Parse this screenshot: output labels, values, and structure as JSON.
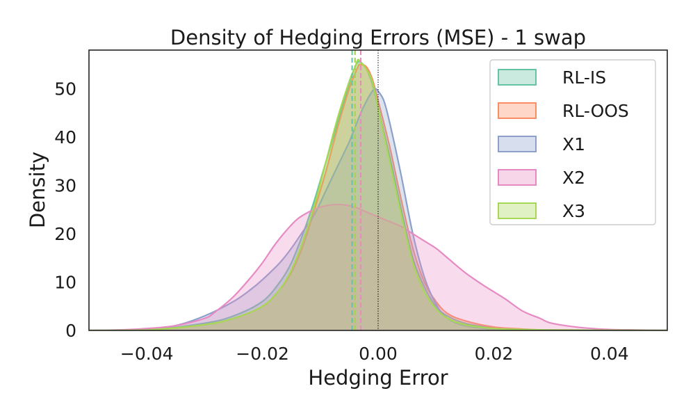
{
  "chart_data": {
    "type": "area",
    "title": "Density of Hedging Errors (MSE) - 1 swap",
    "xlabel": "Hedging Error",
    "ylabel": "Density",
    "xlim": [
      -0.05,
      0.05
    ],
    "ylim": [
      0,
      58
    ],
    "xticks": [
      -0.04,
      -0.02,
      0.0,
      0.02,
      0.04
    ],
    "xtick_labels": [
      "−0.04",
      "−0.02",
      "0.00",
      "0.02",
      "0.04"
    ],
    "yticks": [
      0,
      10,
      20,
      30,
      40,
      50
    ],
    "ytick_labels": [
      "0",
      "10",
      "20",
      "30",
      "40",
      "50"
    ],
    "grid": false,
    "legend_position": "top-right",
    "zero_line": 0.0,
    "series": [
      {
        "name": "RL-IS",
        "color": "#66c2a5",
        "mean": -0.0045,
        "points": [
          [
            -0.05,
            0
          ],
          [
            -0.04,
            0.1
          ],
          [
            -0.03,
            1.5
          ],
          [
            -0.025,
            3
          ],
          [
            -0.02,
            6
          ],
          [
            -0.017,
            10
          ],
          [
            -0.015,
            14
          ],
          [
            -0.013,
            20
          ],
          [
            -0.011,
            27
          ],
          [
            -0.009,
            35
          ],
          [
            -0.007,
            43
          ],
          [
            -0.005,
            51
          ],
          [
            -0.004,
            54.5
          ],
          [
            -0.0035,
            55.5
          ],
          [
            -0.003,
            55.5
          ],
          [
            -0.002,
            54
          ],
          [
            -0.001,
            51
          ],
          [
            0.0,
            46
          ],
          [
            0.002,
            36
          ],
          [
            0.004,
            25
          ],
          [
            0.006,
            15
          ],
          [
            0.008,
            9
          ],
          [
            0.01,
            5
          ],
          [
            0.012,
            3
          ],
          [
            0.015,
            1.5
          ],
          [
            0.02,
            0.5
          ],
          [
            0.025,
            0.2
          ],
          [
            0.03,
            0.1
          ],
          [
            0.05,
            0
          ]
        ]
      },
      {
        "name": "RL-OOS",
        "color": "#fc8d62",
        "mean": -0.003,
        "points": [
          [
            -0.05,
            0
          ],
          [
            -0.04,
            0.1
          ],
          [
            -0.03,
            1.2
          ],
          [
            -0.025,
            2.5
          ],
          [
            -0.02,
            5
          ],
          [
            -0.017,
            8.5
          ],
          [
            -0.015,
            12
          ],
          [
            -0.013,
            17.5
          ],
          [
            -0.011,
            25
          ],
          [
            -0.009,
            33
          ],
          [
            -0.007,
            42
          ],
          [
            -0.005,
            50
          ],
          [
            -0.0035,
            54.5
          ],
          [
            -0.003,
            55
          ],
          [
            -0.002,
            54.5
          ],
          [
            -0.001,
            52
          ],
          [
            0.0,
            47.5
          ],
          [
            0.002,
            38
          ],
          [
            0.004,
            27
          ],
          [
            0.006,
            17
          ],
          [
            0.008,
            10
          ],
          [
            0.01,
            6
          ],
          [
            0.012,
            3.5
          ],
          [
            0.015,
            2
          ],
          [
            0.02,
            0.7
          ],
          [
            0.025,
            0.3
          ],
          [
            0.03,
            0.1
          ],
          [
            0.05,
            0
          ]
        ]
      },
      {
        "name": "X1",
        "color": "#8da0cb",
        "mean": -0.004,
        "points": [
          [
            -0.05,
            0
          ],
          [
            -0.045,
            0.1
          ],
          [
            -0.04,
            0.3
          ],
          [
            -0.035,
            1
          ],
          [
            -0.03,
            3
          ],
          [
            -0.025,
            6
          ],
          [
            -0.022,
            8.5
          ],
          [
            -0.02,
            10.5
          ],
          [
            -0.017,
            14
          ],
          [
            -0.015,
            17
          ],
          [
            -0.013,
            20.5
          ],
          [
            -0.011,
            24
          ],
          [
            -0.009,
            29
          ],
          [
            -0.007,
            34
          ],
          [
            -0.005,
            39
          ],
          [
            -0.004,
            42
          ],
          [
            -0.003,
            45
          ],
          [
            -0.002,
            47.5
          ],
          [
            -0.001,
            49.5
          ],
          [
            -0.0005,
            50
          ],
          [
            0.0,
            49.5
          ],
          [
            0.001,
            47.5
          ],
          [
            0.002,
            43
          ],
          [
            0.004,
            32
          ],
          [
            0.006,
            20
          ],
          [
            0.008,
            11
          ],
          [
            0.01,
            5.5
          ],
          [
            0.012,
            2.5
          ],
          [
            0.015,
            1
          ],
          [
            0.02,
            0.3
          ],
          [
            0.03,
            0.1
          ],
          [
            0.05,
            0
          ]
        ]
      },
      {
        "name": "X2",
        "color": "#e78ac3",
        "mean": -0.003,
        "points": [
          [
            -0.05,
            0
          ],
          [
            -0.045,
            0.1
          ],
          [
            -0.04,
            0.4
          ],
          [
            -0.035,
            1
          ],
          [
            -0.03,
            2.5
          ],
          [
            -0.028,
            4
          ],
          [
            -0.025,
            7
          ],
          [
            -0.022,
            11
          ],
          [
            -0.02,
            14
          ],
          [
            -0.018,
            17.5
          ],
          [
            -0.016,
            20.5
          ],
          [
            -0.014,
            23
          ],
          [
            -0.012,
            24.5
          ],
          [
            -0.01,
            25.5
          ],
          [
            -0.008,
            26
          ],
          [
            -0.006,
            26
          ],
          [
            -0.004,
            25.5
          ],
          [
            -0.002,
            24.5
          ],
          [
            0.0,
            23.5
          ],
          [
            0.002,
            22.5
          ],
          [
            0.004,
            21.5
          ],
          [
            0.006,
            20
          ],
          [
            0.008,
            18.5
          ],
          [
            0.01,
            17
          ],
          [
            0.012,
            15
          ],
          [
            0.015,
            12
          ],
          [
            0.018,
            9.5
          ],
          [
            0.02,
            8
          ],
          [
            0.022,
            6.5
          ],
          [
            0.025,
            4
          ],
          [
            0.028,
            2.5
          ],
          [
            0.03,
            1.5
          ],
          [
            0.035,
            0.6
          ],
          [
            0.04,
            0.2
          ],
          [
            0.045,
            0.1
          ],
          [
            0.05,
            0
          ]
        ]
      },
      {
        "name": "X3",
        "color": "#a6d854",
        "mean": -0.004,
        "points": [
          [
            -0.05,
            0
          ],
          [
            -0.04,
            0.1
          ],
          [
            -0.03,
            1.2
          ],
          [
            -0.025,
            2.5
          ],
          [
            -0.02,
            5
          ],
          [
            -0.017,
            8.5
          ],
          [
            -0.015,
            12.5
          ],
          [
            -0.013,
            18.5
          ],
          [
            -0.011,
            26
          ],
          [
            -0.009,
            35
          ],
          [
            -0.007,
            44
          ],
          [
            -0.005,
            51.5
          ],
          [
            -0.004,
            54.5
          ],
          [
            -0.0035,
            56
          ],
          [
            -0.003,
            55.5
          ],
          [
            -0.002,
            54
          ],
          [
            -0.001,
            51.5
          ],
          [
            0.0,
            46
          ],
          [
            0.002,
            35
          ],
          [
            0.004,
            24
          ],
          [
            0.006,
            14
          ],
          [
            0.008,
            8
          ],
          [
            0.01,
            4.5
          ],
          [
            0.012,
            2.5
          ],
          [
            0.015,
            1.2
          ],
          [
            0.02,
            0.4
          ],
          [
            0.025,
            0.2
          ],
          [
            0.03,
            0.1
          ],
          [
            0.05,
            0
          ]
        ]
      }
    ]
  }
}
